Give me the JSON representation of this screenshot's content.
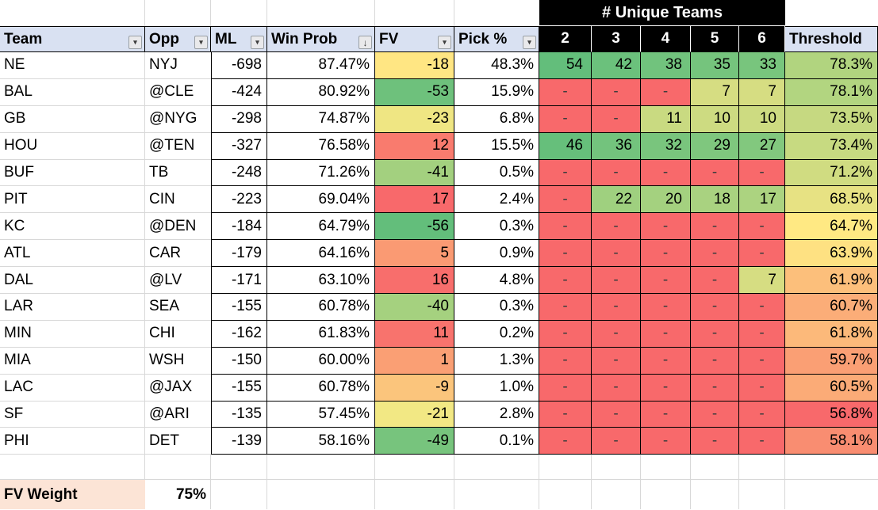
{
  "table": {
    "banner": {
      "label": "# Unique Teams",
      "bg": "#000000",
      "fg": "#FFFFFF"
    },
    "headers": {
      "team": "Team",
      "opp": "Opp",
      "ml": "ML",
      "win_prob": "Win Prob",
      "fv": "FV",
      "pick_pct": "Pick %",
      "unique": [
        "2",
        "3",
        "4",
        "5",
        "6"
      ],
      "threshold": "Threshold"
    },
    "icons": {
      "filter": "▾",
      "sort_filter": "↓"
    },
    "rows": [
      {
        "team": "NE",
        "opp": "NYJ",
        "ml": "-698",
        "win_prob": "87.47%",
        "fv": "-18",
        "fv_color": "#FFE683",
        "pick_pct": "48.3%",
        "unique": [
          {
            "v": "54",
            "c": "#63BE7B"
          },
          {
            "v": "42",
            "c": "#6BC17C"
          },
          {
            "v": "38",
            "c": "#71C37D"
          },
          {
            "v": "35",
            "c": "#75C47D"
          },
          {
            "v": "33",
            "c": "#78C57D"
          }
        ],
        "threshold": "78.3%",
        "threshold_color": "#B1D47F"
      },
      {
        "team": "BAL",
        "opp": "@CLE",
        "ml": "-424",
        "win_prob": "80.92%",
        "fv": "-53",
        "fv_color": "#6EC17C",
        "pick_pct": "15.9%",
        "unique": [
          {
            "v": "-",
            "c": "#F8696B"
          },
          {
            "v": "-",
            "c": "#F8696B"
          },
          {
            "v": "-",
            "c": "#F8696B"
          },
          {
            "v": "7",
            "c": "#D6DD82"
          },
          {
            "v": "7",
            "c": "#D6DD82"
          }
        ],
        "threshold": "78.1%",
        "threshold_color": "#B2D580"
      },
      {
        "team": "GB",
        "opp": "@NYG",
        "ml": "-298",
        "win_prob": "74.87%",
        "fv": "-23",
        "fv_color": "#EFE683",
        "pick_pct": "6.8%",
        "unique": [
          {
            "v": "-",
            "c": "#F8696B"
          },
          {
            "v": "-",
            "c": "#F8696B"
          },
          {
            "v": "11",
            "c": "#C9DA81"
          },
          {
            "v": "10",
            "c": "#CDDB81"
          },
          {
            "v": "10",
            "c": "#CDDB81"
          }
        ],
        "threshold": "73.5%",
        "threshold_color": "#C6D981"
      },
      {
        "team": "HOU",
        "opp": "@TEN",
        "ml": "-327",
        "win_prob": "76.58%",
        "fv": "12",
        "fv_color": "#F97B6E",
        "pick_pct": "15.5%",
        "unique": [
          {
            "v": "46",
            "c": "#66BF7B"
          },
          {
            "v": "36",
            "c": "#73C37D"
          },
          {
            "v": "32",
            "c": "#79C57D"
          },
          {
            "v": "29",
            "c": "#7FC77E"
          },
          {
            "v": "27",
            "c": "#82C87E"
          }
        ],
        "threshold": "73.4%",
        "threshold_color": "#C7DA81"
      },
      {
        "team": "BUF",
        "opp": "TB",
        "ml": "-248",
        "win_prob": "71.26%",
        "fv": "-41",
        "fv_color": "#A3D07F",
        "pick_pct": "0.5%",
        "unique": [
          {
            "v": "-",
            "c": "#F8696B"
          },
          {
            "v": "-",
            "c": "#F8696B"
          },
          {
            "v": "-",
            "c": "#F8696B"
          },
          {
            "v": "-",
            "c": "#F8696B"
          },
          {
            "v": "-",
            "c": "#F8696B"
          }
        ],
        "threshold": "71.2%",
        "threshold_color": "#D0DC81"
      },
      {
        "team": "PIT",
        "opp": "CIN",
        "ml": "-223",
        "win_prob": "69.04%",
        "fv": "17",
        "fv_color": "#F8696B",
        "pick_pct": "2.4%",
        "unique": [
          {
            "v": "-",
            "c": "#F8696B"
          },
          {
            "v": "22",
            "c": "#9FD07F"
          },
          {
            "v": "20",
            "c": "#A4D17F"
          },
          {
            "v": "18",
            "c": "#A9D280"
          },
          {
            "v": "17",
            "c": "#ACD380"
          }
        ],
        "threshold": "68.5%",
        "threshold_color": "#E7E283"
      },
      {
        "team": "KC",
        "opp": "@DEN",
        "ml": "-184",
        "win_prob": "64.79%",
        "fv": "-56",
        "fv_color": "#63BE7B",
        "pick_pct": "0.3%",
        "unique": [
          {
            "v": "-",
            "c": "#F8696B"
          },
          {
            "v": "-",
            "c": "#F8696B"
          },
          {
            "v": "-",
            "c": "#F8696B"
          },
          {
            "v": "-",
            "c": "#F8696B"
          },
          {
            "v": "-",
            "c": "#F8696B"
          }
        ],
        "threshold": "64.7%",
        "threshold_color": "#FFE983"
      },
      {
        "team": "ATL",
        "opp": "CAR",
        "ml": "-179",
        "win_prob": "64.16%",
        "fv": "5",
        "fv_color": "#FA9A73",
        "pick_pct": "0.9%",
        "unique": [
          {
            "v": "-",
            "c": "#F8696B"
          },
          {
            "v": "-",
            "c": "#F8696B"
          },
          {
            "v": "-",
            "c": "#F8696B"
          },
          {
            "v": "-",
            "c": "#F8696B"
          },
          {
            "v": "-",
            "c": "#F8696B"
          }
        ],
        "threshold": "63.9%",
        "threshold_color": "#FEE182"
      },
      {
        "team": "DAL",
        "opp": "@LV",
        "ml": "-171",
        "win_prob": "63.10%",
        "fv": "16",
        "fv_color": "#F86E6C",
        "pick_pct": "4.8%",
        "unique": [
          {
            "v": "-",
            "c": "#F8696B"
          },
          {
            "v": "-",
            "c": "#F8696B"
          },
          {
            "v": "-",
            "c": "#F8696B"
          },
          {
            "v": "-",
            "c": "#F8696B"
          },
          {
            "v": "7",
            "c": "#D6DD82"
          }
        ],
        "threshold": "61.9%",
        "threshold_color": "#FCBF7B"
      },
      {
        "team": "LAR",
        "opp": "SEA",
        "ml": "-155",
        "win_prob": "60.78%",
        "fv": "-40",
        "fv_color": "#A5D17F",
        "pick_pct": "0.3%",
        "unique": [
          {
            "v": "-",
            "c": "#F8696B"
          },
          {
            "v": "-",
            "c": "#F8696B"
          },
          {
            "v": "-",
            "c": "#F8696B"
          },
          {
            "v": "-",
            "c": "#F8696B"
          },
          {
            "v": "-",
            "c": "#F8696B"
          }
        ],
        "threshold": "60.7%",
        "threshold_color": "#FBAD78"
      },
      {
        "team": "MIN",
        "opp": "CHI",
        "ml": "-162",
        "win_prob": "61.83%",
        "fv": "11",
        "fv_color": "#F8736D",
        "pick_pct": "0.2%",
        "unique": [
          {
            "v": "-",
            "c": "#F8696B"
          },
          {
            "v": "-",
            "c": "#F8696B"
          },
          {
            "v": "-",
            "c": "#F8696B"
          },
          {
            "v": "-",
            "c": "#F8696B"
          },
          {
            "v": "-",
            "c": "#F8696B"
          }
        ],
        "threshold": "61.8%",
        "threshold_color": "#FCB97A"
      },
      {
        "team": "MIA",
        "opp": "WSH",
        "ml": "-150",
        "win_prob": "60.00%",
        "fv": "1",
        "fv_color": "#FA9F74",
        "pick_pct": "1.3%",
        "unique": [
          {
            "v": "-",
            "c": "#F8696B"
          },
          {
            "v": "-",
            "c": "#F8696B"
          },
          {
            "v": "-",
            "c": "#F8696B"
          },
          {
            "v": "-",
            "c": "#F8696B"
          },
          {
            "v": "-",
            "c": "#F8696B"
          }
        ],
        "threshold": "59.7%",
        "threshold_color": "#FA9F74"
      },
      {
        "team": "LAC",
        "opp": "@JAX",
        "ml": "-155",
        "win_prob": "60.78%",
        "fv": "-9",
        "fv_color": "#FBC57C",
        "pick_pct": "1.0%",
        "unique": [
          {
            "v": "-",
            "c": "#F8696B"
          },
          {
            "v": "-",
            "c": "#F8696B"
          },
          {
            "v": "-",
            "c": "#F8696B"
          },
          {
            "v": "-",
            "c": "#F8696B"
          },
          {
            "v": "-",
            "c": "#F8696B"
          }
        ],
        "threshold": "60.5%",
        "threshold_color": "#FBAB77"
      },
      {
        "team": "SF",
        "opp": "@ARI",
        "ml": "-135",
        "win_prob": "57.45%",
        "fv": "-21",
        "fv_color": "#F2E884",
        "pick_pct": "2.8%",
        "unique": [
          {
            "v": "-",
            "c": "#F8696B"
          },
          {
            "v": "-",
            "c": "#F8696B"
          },
          {
            "v": "-",
            "c": "#F8696B"
          },
          {
            "v": "-",
            "c": "#F8696B"
          },
          {
            "v": "-",
            "c": "#F8696B"
          }
        ],
        "threshold": "56.8%",
        "threshold_color": "#F8696B"
      },
      {
        "team": "PHI",
        "opp": "DET",
        "ml": "-139",
        "win_prob": "58.16%",
        "fv": "-49",
        "fv_color": "#77C47D",
        "pick_pct": "0.1%",
        "unique": [
          {
            "v": "-",
            "c": "#F8696B"
          },
          {
            "v": "-",
            "c": "#F8696B"
          },
          {
            "v": "-",
            "c": "#F8696B"
          },
          {
            "v": "-",
            "c": "#F8696B"
          },
          {
            "v": "-",
            "c": "#F8696B"
          }
        ],
        "threshold": "58.1%",
        "threshold_color": "#F98D71"
      }
    ]
  },
  "footer": {
    "label": "FV Weight",
    "value": "75%",
    "bg": "#FCE4D6"
  },
  "colors": {
    "header_bg": "#D9E1F2",
    "banner_bg": "#000000",
    "gridline": "#D8D8D8",
    "scale_red": "#F8696B",
    "scale_yellow": "#FFEB84",
    "scale_green": "#63BE7B",
    "footer_bg": "#FCE4D6"
  }
}
